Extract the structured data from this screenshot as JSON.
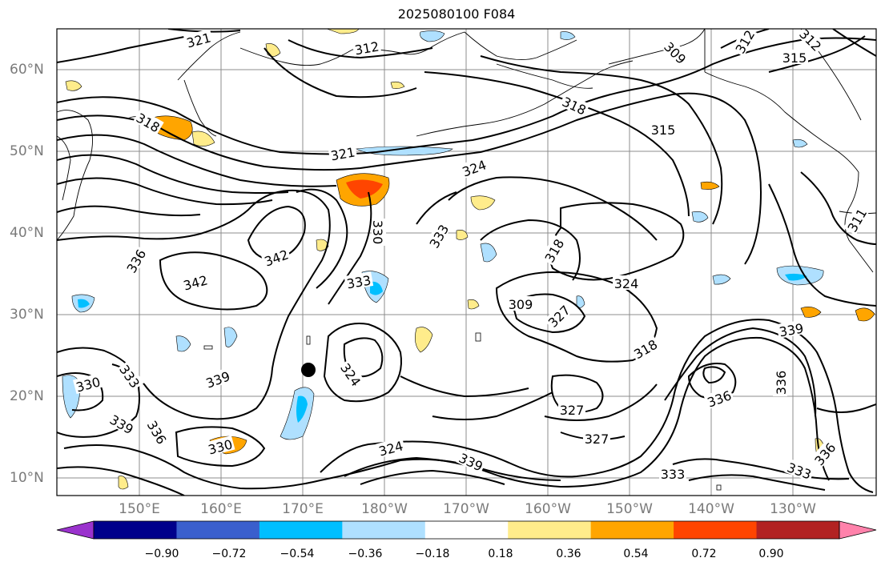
{
  "title": "2025080100 F084",
  "lat_labels": [
    "60°N",
    "50°N",
    "40°N",
    "30°N",
    "20°N",
    "10°N"
  ],
  "lon_labels": [
    "150°E",
    "160°E",
    "170°E",
    "180°W",
    "170°W",
    "160°W",
    "150°W",
    "140°W",
    "130°W"
  ],
  "colorbar": {
    "ticks": [
      "−0.90",
      "−0.72",
      "−0.54",
      "−0.36",
      "−0.18",
      "0.18",
      "0.36",
      "0.54",
      "0.72",
      "0.90"
    ],
    "colors": [
      "#9a32cd",
      "#00008b",
      "#3a5fcd",
      "#00bfff",
      "#afe0ff",
      "#ffffff",
      "#ffec8b",
      "#ffa500",
      "#ff4500",
      "#b22222",
      "#ff82ab"
    ]
  },
  "contour_labels": [
    "321",
    "312",
    "309",
    "312",
    "315",
    "318",
    "318",
    "315",
    "309",
    "321",
    "324",
    "336",
    "342",
    "342",
    "330",
    "333",
    "333",
    "318",
    "324",
    "327",
    "318",
    "336",
    "339",
    "324",
    "330",
    "333",
    "339",
    "336",
    "330",
    "324",
    "339",
    "327",
    "327",
    "333",
    "333",
    "336",
    "336",
    "339",
    "311",
    "312"
  ],
  "marker": "typhoon-center-dot"
}
